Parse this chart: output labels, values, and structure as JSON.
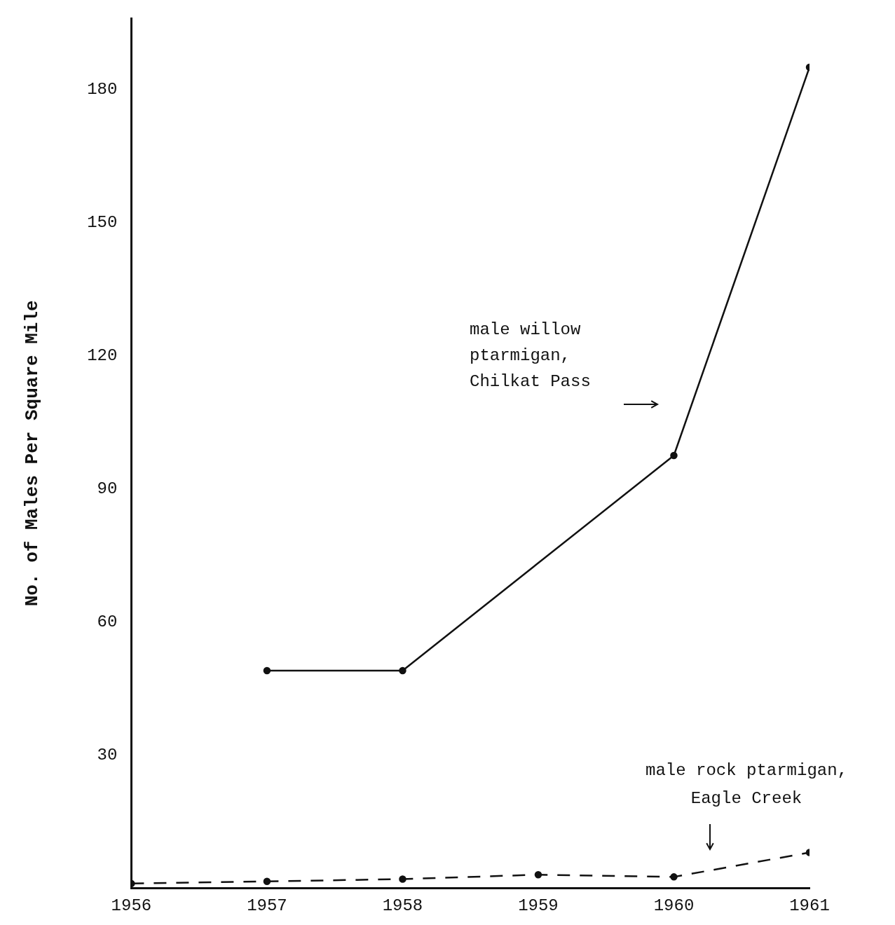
{
  "chart_data": {
    "type": "line",
    "ylabel": "No. of Males Per Square Mile",
    "x": [
      1956,
      1957,
      1958,
      1959,
      1960,
      1961
    ],
    "xlim": [
      1956,
      1961
    ],
    "xticks": [
      1956,
      1957,
      1958,
      1959,
      1960,
      1961
    ],
    "ylim": [
      0,
      196
    ],
    "yticks": [
      30,
      60,
      90,
      120,
      150,
      180
    ],
    "series": [
      {
        "color": "#111111",
        "x": [
          1957,
          1958,
          1960,
          1961
        ],
        "values": [
          49,
          49,
          97.5,
          185
        ],
        "line_style": "solid"
      },
      {
        "color": "#111111",
        "values": [
          1,
          1.5,
          2,
          3,
          2.5,
          8
        ],
        "line_style": "dashed"
      }
    ],
    "annotations": [
      "male willow\nptarmigan,\nChilkat Pass",
      "male rock ptarmigan,\nEagle Creek"
    ],
    "grid": false,
    "legend": false,
    "marker": "circle"
  }
}
